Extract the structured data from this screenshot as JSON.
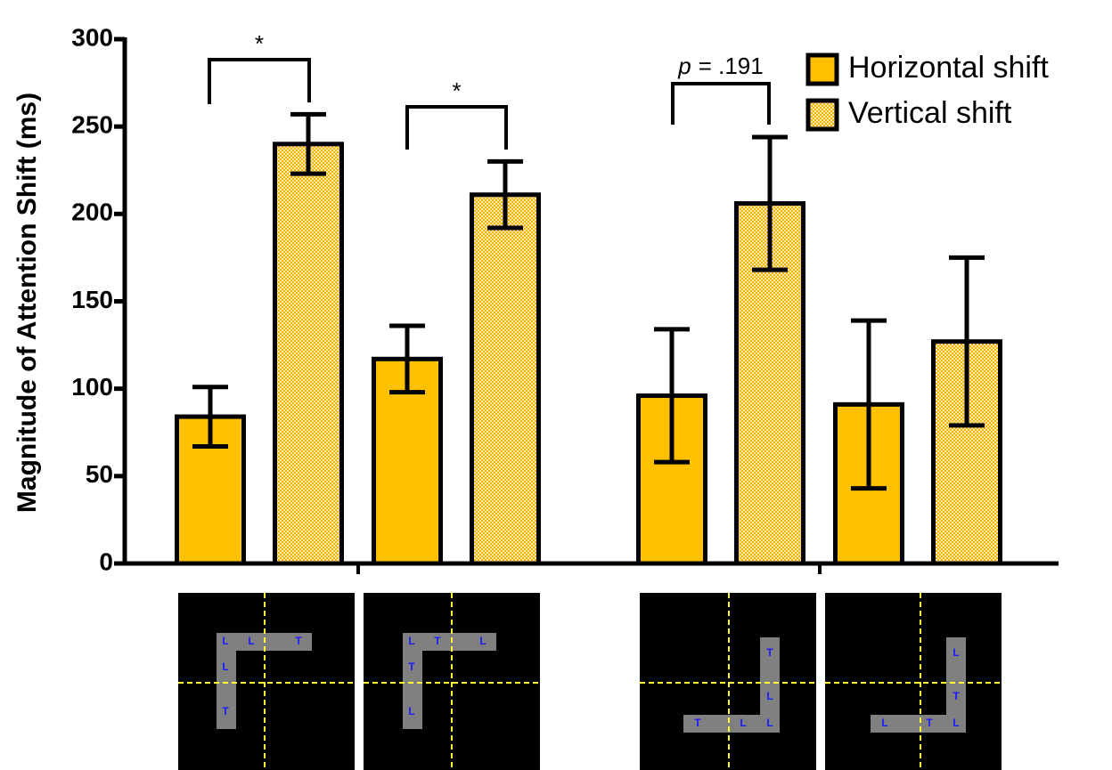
{
  "chart_data": {
    "type": "bar",
    "y_label": "Magnitude of Attention Shift (ms)",
    "categories": [
      null,
      null,
      null,
      null
    ],
    "series": [
      {
        "name": "Horizontal shift",
        "color": "#ffc000",
        "values": [
          84,
          117,
          96,
          91
        ],
        "errors": [
          17,
          19,
          38,
          48
        ]
      },
      {
        "name": "Vertical shift",
        "color": "#f6c560",
        "pattern": "checkered",
        "values": [
          240,
          211,
          206,
          127
        ],
        "errors": [
          17,
          19,
          38,
          48
        ]
      }
    ],
    "ylim": [
      0,
      300
    ],
    "yticks": [
      0,
      50,
      100,
      150,
      200,
      250,
      300
    ],
    "legend": "top-right",
    "annotations": [
      {
        "text": "*"
      },
      {
        "text": "*"
      },
      {
        "italic": "p",
        "text": "= .191"
      }
    ],
    "stimuli": [
      {
        "letters": [
          "L",
          "L",
          "T",
          "L",
          "T"
        ]
      },
      {
        "letters": [
          "L",
          "T",
          "L",
          "T",
          "L"
        ]
      },
      {
        "letters": [
          "T",
          "L",
          "T",
          "L",
          "L"
        ]
      },
      {
        "letters": [
          "L",
          "T",
          "L",
          "T",
          "L"
        ]
      }
    ]
  }
}
